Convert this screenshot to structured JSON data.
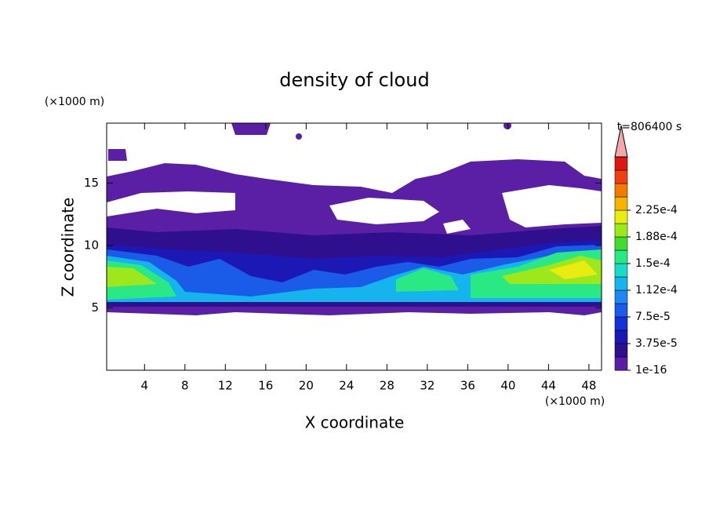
{
  "chart_data": {
    "type": "contour",
    "title": "density of cloud",
    "x_label": "X coordinate",
    "y_label": "Z coordinate",
    "x_unit": "(×1000 m)",
    "y_unit": "(×1000 m)",
    "annotation": "t=806400 s",
    "xlim": [
      0.25,
      49.25
    ],
    "ylim": [
      0,
      19.8
    ],
    "xticks": [
      4,
      8,
      12,
      16,
      20,
      24,
      28,
      32,
      36,
      40,
      44,
      48
    ],
    "yticks": [
      5,
      10,
      15
    ],
    "colorbar": {
      "ticks": [
        1e-16,
        {
          "value": 3.75e-05,
          "label": "3.75e-5"
        },
        {
          "value": 7.5e-05,
          "label": "7.5e-5"
        },
        {
          "value": 0.000112,
          "label": "1.12e-4"
        },
        {
          "value": 0.00015,
          "label": "1.5e-4"
        },
        {
          "value": 0.000188,
          "label": "1.88e-4"
        },
        {
          "value": 0.000225,
          "label": "2.25e-4"
        }
      ],
      "colors": [
        "#5b1fa6",
        "#2e0f8e",
        "#1c18b6",
        "#1232d6",
        "#1a5ce8",
        "#1e88f0",
        "#16b4ec",
        "#18dcc8",
        "#2ae884",
        "#40dc30",
        "#9ce81c",
        "#e8ec10",
        "#f6b400",
        "#f27a00",
        "#ec4010",
        "#dc1812"
      ],
      "extend_color": "#f4a8a8"
    }
  }
}
